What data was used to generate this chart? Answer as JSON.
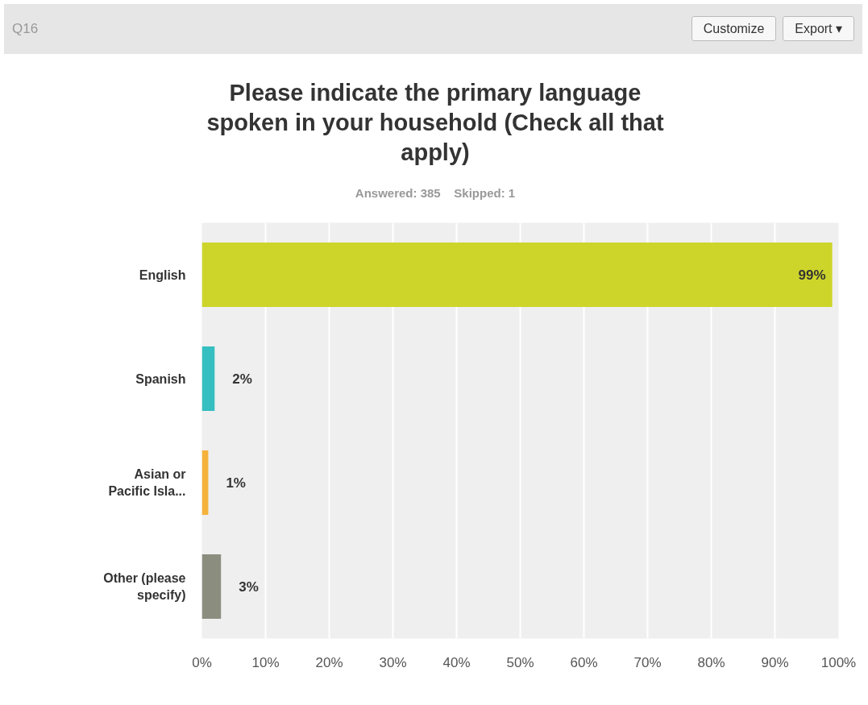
{
  "chart_data": {
    "type": "bar",
    "orientation": "horizontal",
    "title": "Please indicate the primary language spoken in your household (Check all that apply)",
    "subtitle": "Answered: 385    Skipped: 1",
    "annotations": [
      "Q16",
      "Customize",
      "Export ▾"
    ],
    "categories": [
      "English",
      "Spanish",
      "Asian or Pacific Isla...",
      "Other (please specify)"
    ],
    "values": [
      99,
      2,
      1,
      3
    ],
    "colors": [
      "#cdd52a",
      "#35bfc0",
      "#f5b23c",
      "#8b8e7f"
    ],
    "value_labels": [
      "99%",
      "2%",
      "1%",
      "3%"
    ],
    "xlim": [
      0,
      100
    ],
    "xticks": [
      {
        "value": 0,
        "label": "0%"
      },
      {
        "value": 10,
        "label": "10%"
      },
      {
        "value": 20,
        "label": "20%"
      },
      {
        "value": 30,
        "label": "30%"
      },
      {
        "value": 40,
        "label": "40%"
      },
      {
        "value": 50,
        "label": "50%"
      },
      {
        "value": 60,
        "label": "60%"
      },
      {
        "value": 70,
        "label": "70%"
      },
      {
        "value": 80,
        "label": "80%"
      },
      {
        "value": 90,
        "label": "90%"
      },
      {
        "value": 100,
        "label": "100%"
      }
    ],
    "grid": "x"
  }
}
